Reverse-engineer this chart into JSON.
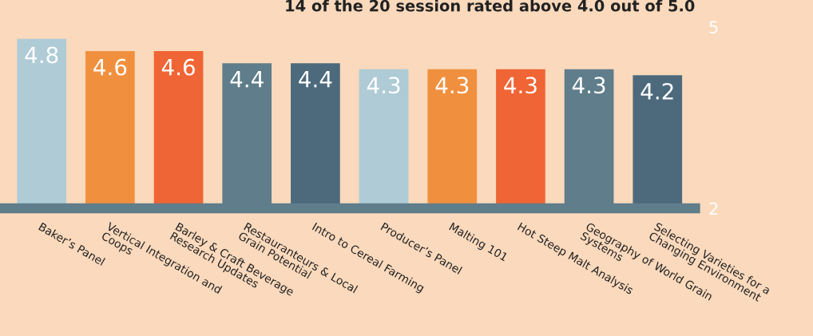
{
  "chart_data": {
    "type": "bar",
    "title": "14 of the 20 session rated above 4.0 out of 5.0",
    "categories": [
      "Baker’s Panel",
      "Vertical Integration and\nCoops",
      "Barley & Craft Beverage\nResearch Updates",
      "Restauranteurs & Local\nGrain Potential",
      "Intro to Cereal Farming",
      "Producer’s Panel",
      "Malting 101",
      "Hot Steep Malt Analysis",
      "Geography of World Grain\nSystems",
      "Selecting Varieties for a\nChanging Environment"
    ],
    "values": [
      4.8,
      4.6,
      4.6,
      4.4,
      4.4,
      4.3,
      4.3,
      4.3,
      4.3,
      4.2
    ],
    "colors": [
      "#aecbd6",
      "#f0903e",
      "#f06535",
      "#5f7d8a",
      "#4d6a7d",
      "#aecbd6",
      "#f0903e",
      "#f06535",
      "#5f7d8a",
      "#4d6a7d"
    ],
    "ylim": [
      2,
      5
    ],
    "yticks": [
      2,
      5
    ],
    "data_labels": true,
    "grid": false
  }
}
